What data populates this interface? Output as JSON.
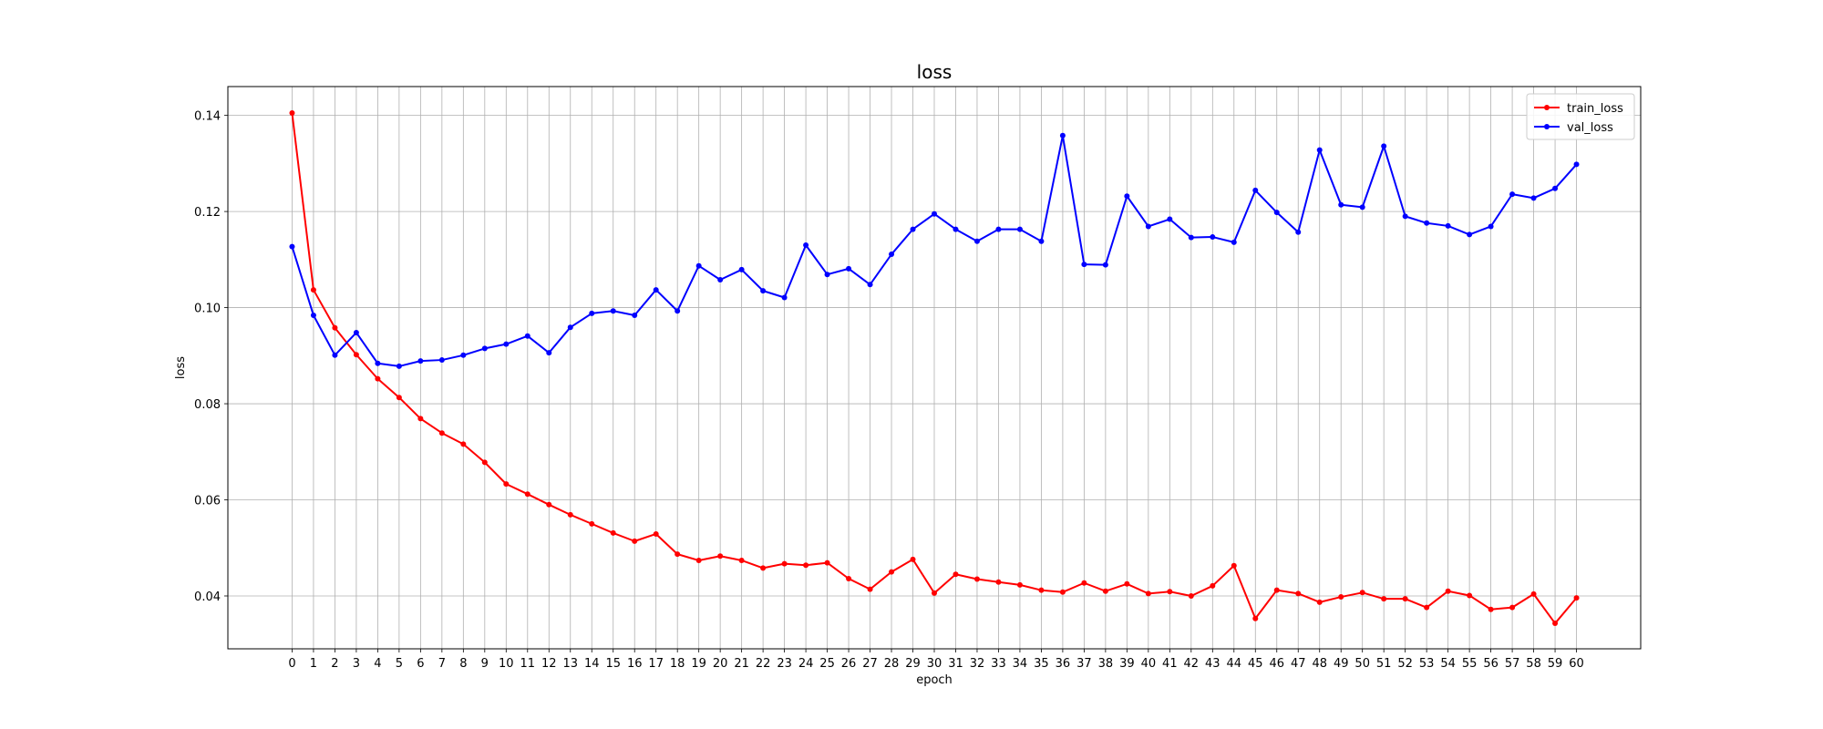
{
  "chart_data": {
    "type": "line",
    "title": "loss",
    "xlabel": "epoch",
    "ylabel": "loss",
    "x": [
      0,
      1,
      2,
      3,
      4,
      5,
      6,
      7,
      8,
      9,
      10,
      11,
      12,
      13,
      14,
      15,
      16,
      17,
      18,
      19,
      20,
      21,
      22,
      23,
      24,
      25,
      26,
      27,
      28,
      29,
      30,
      31,
      32,
      33,
      34,
      35,
      36,
      37,
      38,
      39,
      40,
      41,
      42,
      43,
      44,
      45,
      46,
      47,
      48,
      49,
      50,
      51,
      52,
      53,
      54,
      55,
      56,
      57,
      58,
      59,
      60
    ],
    "xlim": [
      -3,
      63
    ],
    "ylim": [
      0.029,
      0.146
    ],
    "yticks": [
      0.04,
      0.06,
      0.08,
      0.1,
      0.12,
      0.14
    ],
    "ytick_labels": [
      "0.04",
      "0.06",
      "0.08",
      "0.10",
      "0.12",
      "0.14"
    ],
    "grid": true,
    "legend_position": "top-right",
    "series": [
      {
        "name": "train_loss",
        "color": "#ff0000",
        "values": [
          0.1405,
          0.1037,
          0.0958,
          0.0902,
          0.0852,
          0.0813,
          0.0769,
          0.0739,
          0.0716,
          0.0678,
          0.0633,
          0.0612,
          0.059,
          0.0569,
          0.055,
          0.0531,
          0.0514,
          0.0529,
          0.0487,
          0.0474,
          0.0483,
          0.0474,
          0.0458,
          0.0467,
          0.0464,
          0.0469,
          0.0436,
          0.0414,
          0.045,
          0.0476,
          0.0406,
          0.0445,
          0.0435,
          0.0429,
          0.0423,
          0.0412,
          0.0408,
          0.0427,
          0.041,
          0.0425,
          0.0405,
          0.0409,
          0.04,
          0.0421,
          0.0463,
          0.0353,
          0.0412,
          0.0405,
          0.0387,
          0.0398,
          0.0407,
          0.0394,
          0.0394,
          0.0376,
          0.041,
          0.0401,
          0.0372,
          0.0376,
          0.0404,
          0.0343,
          0.0396
        ]
      },
      {
        "name": "val_loss",
        "color": "#0000ff",
        "values": [
          0.1127,
          0.0984,
          0.0901,
          0.0948,
          0.0884,
          0.0878,
          0.0889,
          0.0891,
          0.0901,
          0.0915,
          0.0924,
          0.0941,
          0.0906,
          0.0959,
          0.0988,
          0.0993,
          0.0984,
          0.1037,
          0.0993,
          0.1087,
          0.1058,
          0.1079,
          0.1035,
          0.1021,
          0.113,
          0.1069,
          0.1081,
          0.1048,
          0.1111,
          0.1163,
          0.1195,
          0.1163,
          0.1138,
          0.1163,
          0.1163,
          0.1138,
          0.1358,
          0.109,
          0.1089,
          0.1232,
          0.1169,
          0.1184,
          0.1146,
          0.1147,
          0.1136,
          0.1244,
          0.1198,
          0.1157,
          0.1328,
          0.1214,
          0.1209,
          0.1336,
          0.119,
          0.1176,
          0.117,
          0.1152,
          0.1169,
          0.1236,
          0.1228,
          0.1248,
          0.1298
        ]
      }
    ]
  }
}
